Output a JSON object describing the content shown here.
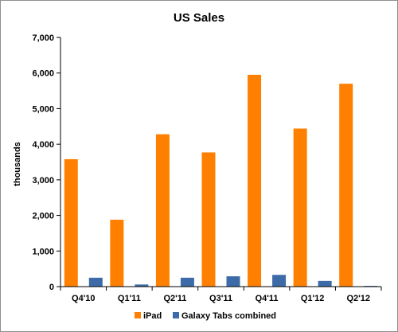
{
  "chart_data": {
    "type": "bar",
    "title": "US Sales",
    "ylabel": "thousands",
    "xlabel": "",
    "categories": [
      "Q4'10",
      "Q1'11",
      "Q2'11",
      "Q3'11",
      "Q4'11",
      "Q1'12",
      "Q2'12"
    ],
    "series": [
      {
        "name": "iPad",
        "color": "#ff8000",
        "values": [
          3580,
          1880,
          4280,
          3770,
          5950,
          4440,
          5700
        ]
      },
      {
        "name": "Galaxy Tabs combined",
        "color": "#3d6ba8",
        "values": [
          250,
          60,
          250,
          290,
          330,
          160,
          20
        ]
      }
    ],
    "ylim": [
      0,
      7000
    ],
    "y_ticks": [
      "0",
      "1,000",
      "2,000",
      "3,000",
      "4,000",
      "5,000",
      "6,000",
      "7,000"
    ],
    "grid": false,
    "legend_position": "bottom"
  }
}
